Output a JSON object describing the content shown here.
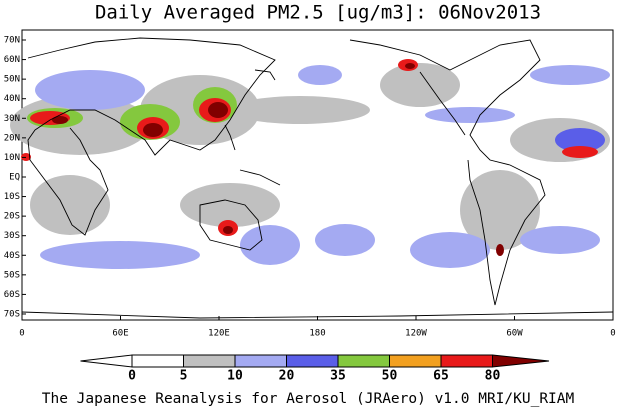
{
  "title": "Daily Averaged PM2.5 [ug/m3]: 06Nov2013",
  "lat_labels": [
    "70N",
    "60N",
    "50N",
    "40N",
    "30N",
    "20N",
    "10N",
    "EQ",
    "10S",
    "20S",
    "30S",
    "40S",
    "50S",
    "60S",
    "70S"
  ],
  "lon_labels": [
    "0",
    "60E",
    "120E",
    "180",
    "120W",
    "60W",
    "0"
  ],
  "colorbar": {
    "levels": [
      0,
      5,
      10,
      20,
      35,
      50,
      65,
      80
    ],
    "colors": [
      "#ffffff",
      "#ffffff",
      "#c0c0c0",
      "#a4aaf2",
      "#5a5ee8",
      "#84c83e",
      "#f2a020",
      "#e81a1a",
      "#800000"
    ]
  },
  "footer": "The Japanese Reanalysis for Aerosol (JRAero) v1.0 MRI/KU_RIAM"
}
